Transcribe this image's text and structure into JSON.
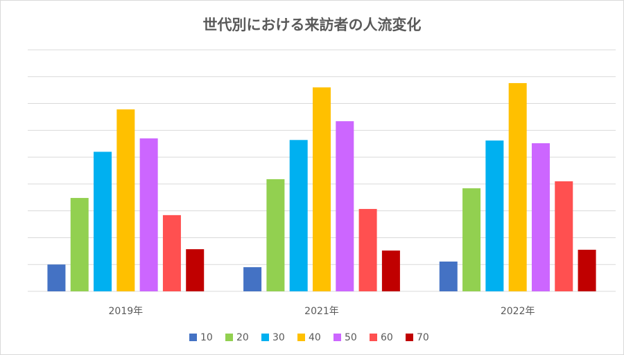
{
  "chart_data": {
    "type": "bar",
    "title": "世代別における来訪者の人流変化",
    "categories": [
      "2019年",
      "2021年",
      "2022年"
    ],
    "series": [
      {
        "name": "10",
        "color": "#4472c4",
        "values": [
          1.0,
          0.9,
          1.11
        ]
      },
      {
        "name": "20",
        "color": "#92d050",
        "values": [
          3.48,
          4.18,
          3.84
        ]
      },
      {
        "name": "30",
        "color": "#00b0f0",
        "values": [
          5.2,
          5.64,
          5.62
        ]
      },
      {
        "name": "40",
        "color": "#ffc000",
        "values": [
          6.78,
          7.6,
          7.76
        ]
      },
      {
        "name": "50",
        "color": "#cc66ff",
        "values": [
          5.7,
          6.34,
          5.52
        ]
      },
      {
        "name": "60",
        "color": "#ff5050",
        "values": [
          2.84,
          3.07,
          4.1
        ]
      },
      {
        "name": "70",
        "color": "#c00000",
        "values": [
          1.57,
          1.52,
          1.55
        ]
      }
    ],
    "ylim": [
      0,
      9
    ],
    "yticks": [
      0,
      1,
      2,
      3,
      4,
      5,
      6,
      7,
      8,
      9
    ],
    "grid": true,
    "legend": "bottom"
  }
}
